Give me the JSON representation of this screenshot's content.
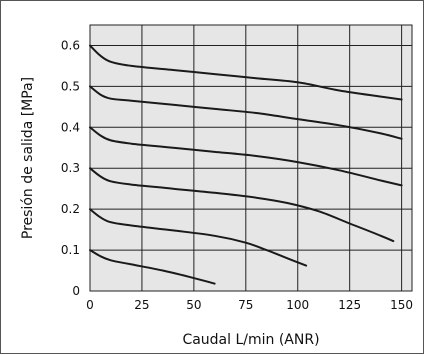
{
  "chart_data": {
    "type": "line",
    "title": "",
    "xlabel": "Caudal L/min (ANR)",
    "ylabel": "Presión de salida [MPa]",
    "x_ticks": [
      "0",
      "25",
      "50",
      "75",
      "100",
      "125",
      "150"
    ],
    "y_ticks": [
      "0",
      "0.1",
      "0.2",
      "0.3",
      "0.4",
      "0.5",
      "0.6"
    ],
    "xlim": [
      0,
      155
    ],
    "ylim": [
      0,
      0.65
    ],
    "grid": true,
    "plot_background": "#e6e6e6",
    "line_color": "#1a1a1a",
    "series": [
      {
        "x": [
          0,
          5,
          10,
          20,
          40,
          60,
          80,
          100,
          120,
          140,
          150
        ],
        "y": [
          0.6,
          0.575,
          0.56,
          0.55,
          0.54,
          0.53,
          0.52,
          0.51,
          0.49,
          0.475,
          0.468
        ]
      },
      {
        "x": [
          0,
          5,
          10,
          20,
          40,
          60,
          80,
          100,
          120,
          140,
          150
        ],
        "y": [
          0.5,
          0.48,
          0.47,
          0.465,
          0.455,
          0.445,
          0.435,
          0.42,
          0.405,
          0.385,
          0.372
        ]
      },
      {
        "x": [
          0,
          5,
          10,
          20,
          40,
          60,
          80,
          100,
          120,
          140,
          150
        ],
        "y": [
          0.4,
          0.38,
          0.368,
          0.36,
          0.35,
          0.34,
          0.33,
          0.315,
          0.295,
          0.27,
          0.258
        ]
      },
      {
        "x": [
          0,
          5,
          10,
          20,
          40,
          60,
          80,
          95,
          110,
          125,
          140,
          146
        ],
        "y": [
          0.3,
          0.28,
          0.268,
          0.26,
          0.25,
          0.24,
          0.228,
          0.215,
          0.195,
          0.165,
          0.135,
          0.122
        ]
      },
      {
        "x": [
          0,
          5,
          10,
          20,
          40,
          60,
          75,
          85,
          95,
          104
        ],
        "y": [
          0.2,
          0.18,
          0.168,
          0.16,
          0.148,
          0.135,
          0.118,
          0.1,
          0.08,
          0.062
        ]
      },
      {
        "x": [
          0,
          5,
          10,
          20,
          35,
          45,
          55,
          60
        ],
        "y": [
          0.1,
          0.085,
          0.075,
          0.065,
          0.05,
          0.038,
          0.025,
          0.018
        ]
      }
    ]
  }
}
